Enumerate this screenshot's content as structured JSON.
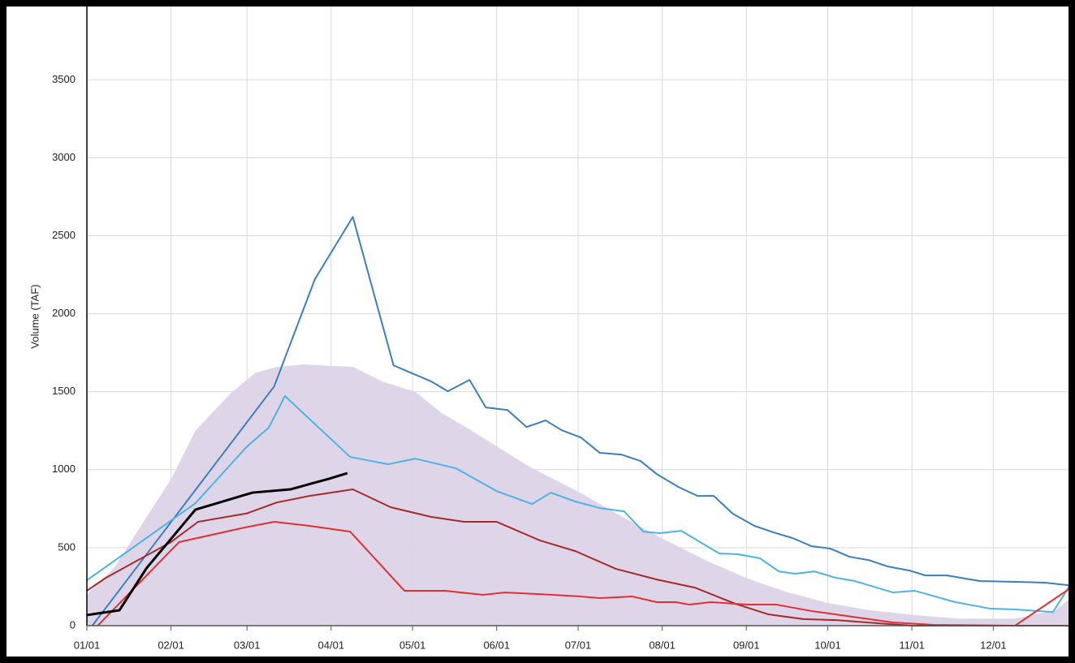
{
  "chart_data": {
    "type": "line",
    "ylabel": "Volume (TAF)",
    "xlim": [
      1,
      366
    ],
    "ylim": [
      0,
      3970
    ],
    "xticks": [
      {
        "value": 1,
        "label": "01/01"
      },
      {
        "value": 32,
        "label": "02/01"
      },
      {
        "value": 60,
        "label": "03/01"
      },
      {
        "value": 91,
        "label": "04/01"
      },
      {
        "value": 121,
        "label": "05/01"
      },
      {
        "value": 152,
        "label": "06/01"
      },
      {
        "value": 182,
        "label": "07/01"
      },
      {
        "value": 213,
        "label": "08/01"
      },
      {
        "value": 244,
        "label": "09/01"
      },
      {
        "value": 274,
        "label": "10/01"
      },
      {
        "value": 305,
        "label": "11/01"
      },
      {
        "value": 335,
        "label": "12/01"
      }
    ],
    "yticks": [
      0,
      500,
      1000,
      1500,
      2000,
      2500,
      3000,
      3500
    ],
    "grid": true,
    "series": [
      {
        "type": "area",
        "color": "#dcd3e8",
        "x": [
          1,
          11,
          32,
          41,
          54,
          63,
          71,
          81,
          92,
          99,
          110,
          122,
          132,
          140,
          152,
          164,
          182,
          197,
          214,
          229,
          244,
          259,
          274,
          289,
          305,
          322,
          343,
          358,
          365
        ],
        "values": [
          200,
          370,
          940,
          1250,
          1490,
          1620,
          1660,
          1675,
          1665,
          1660,
          1565,
          1500,
          1360,
          1280,
          1150,
          1020,
          860,
          710,
          550,
          420,
          305,
          215,
          145,
          100,
          70,
          45,
          45,
          100,
          200
        ]
      },
      {
        "type": "line",
        "color": "#3b7fbd",
        "x": [
          3,
          70,
          85,
          99,
          114,
          128,
          134,
          142,
          148,
          156,
          163,
          170,
          176,
          183,
          190,
          198,
          205,
          211,
          219,
          226,
          232,
          239,
          247,
          254,
          261,
          268,
          275,
          282,
          289,
          296,
          304,
          310,
          318,
          330,
          343,
          354,
          365
        ],
        "values": [
          0,
          1534,
          2221,
          2621,
          1669,
          1565,
          1503,
          1576,
          1399,
          1383,
          1274,
          1316,
          1253,
          1207,
          1108,
          1097,
          1056,
          972,
          889,
          832,
          832,
          718,
          640,
          598,
          562,
          510,
          494,
          442,
          421,
          380,
          354,
          322,
          322,
          286,
          281,
          276,
          255
        ]
      },
      {
        "type": "line",
        "color": "#4db3e6",
        "x": [
          1,
          41,
          60,
          68,
          74,
          98,
          112,
          122,
          137,
          152,
          165,
          172,
          181,
          190,
          199,
          206,
          212,
          220,
          234,
          241,
          249,
          256,
          262,
          269,
          277,
          284,
          298,
          306,
          321,
          334,
          343,
          357,
          365
        ],
        "values": [
          291,
          785,
          1149,
          1269,
          1472,
          1082,
          1035,
          1071,
          1009,
          863,
          780,
          853,
          796,
          754,
          733,
          603,
          593,
          608,
          463,
          458,
          432,
          348,
          333,
          348,
          307,
          286,
          213,
          224,
          151,
          109,
          104,
          88,
          307
        ]
      },
      {
        "type": "line",
        "color": "#a52a2a",
        "x": [
          1,
          8,
          32,
          42,
          60,
          71,
          83,
          99,
          113,
          128,
          140,
          152,
          168,
          181,
          196,
          211,
          225,
          240,
          252,
          265,
          277,
          292,
          305,
          365
        ],
        "values": [
          224,
          307,
          536,
          666,
          720,
          790,
          832,
          874,
          759,
          697,
          666,
          666,
          546,
          478,
          364,
          296,
          244,
          140,
          73,
          42,
          36,
          16,
          0,
          0
        ]
      },
      {
        "type": "line",
        "color": "#e03030",
        "x": [
          5,
          35,
          59,
          70,
          83,
          98,
          118,
          133,
          147,
          155,
          167,
          183,
          190,
          202,
          211,
          218,
          223,
          231,
          244,
          255,
          268,
          283,
          298,
          313,
          343,
          365
        ],
        "values": [
          0,
          536,
          629,
          666,
          640,
          603,
          224,
          224,
          198,
          213,
          203,
          187,
          177,
          187,
          151,
          151,
          135,
          151,
          135,
          135,
          94,
          57,
          21,
          5,
          0,
          260
        ]
      },
      {
        "type": "line",
        "color": "#000000",
        "width": 3,
        "x": [
          1,
          13,
          23,
          41,
          62,
          76,
          90,
          97
        ],
        "values": [
          68,
          99,
          369,
          744,
          853,
          874,
          941,
          978
        ]
      }
    ]
  }
}
